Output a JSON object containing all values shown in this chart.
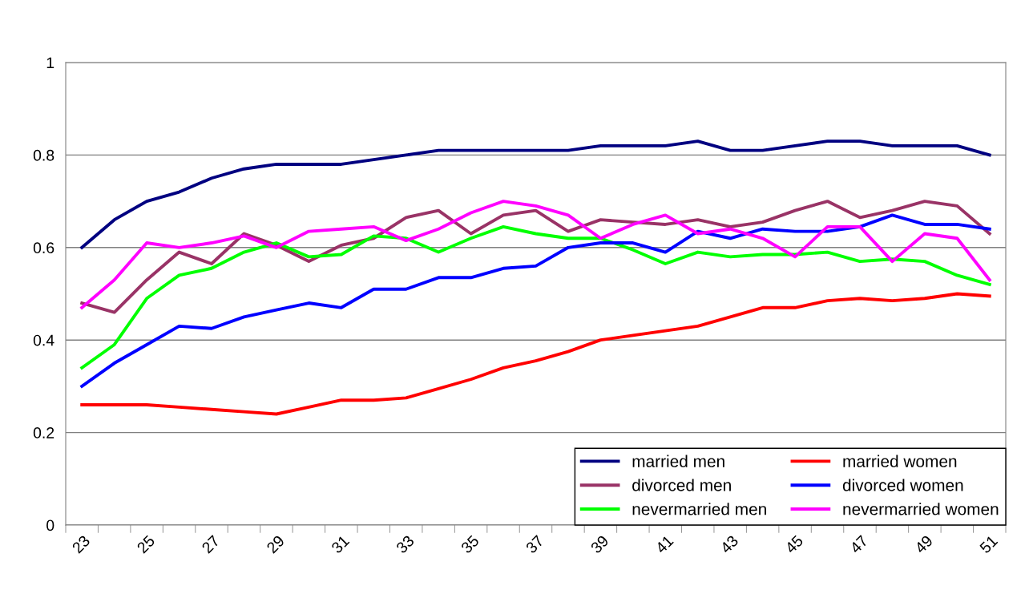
{
  "chart_data": {
    "type": "line",
    "categories": [
      "23",
      null,
      "25",
      null,
      "27",
      null,
      "29",
      null,
      "31",
      null,
      "33",
      null,
      "35",
      null,
      "37",
      null,
      "39",
      null,
      "41",
      null,
      "43",
      null,
      "45",
      null,
      "47",
      null,
      "49",
      null,
      "51"
    ],
    "series": [
      {
        "name": "married men",
        "color": "#000080",
        "values": [
          0.6,
          0.66,
          0.7,
          0.72,
          0.75,
          0.77,
          0.78,
          0.78,
          0.78,
          0.79,
          0.8,
          0.81,
          0.81,
          0.81,
          0.81,
          0.81,
          0.82,
          0.82,
          0.82,
          0.83,
          0.81,
          0.81,
          0.82,
          0.83,
          0.83,
          0.82,
          0.82,
          0.82,
          0.8
        ]
      },
      {
        "name": "divorced men",
        "color": "#993366",
        "values": [
          0.48,
          0.46,
          0.53,
          0.59,
          0.565,
          0.63,
          0.605,
          0.57,
          0.605,
          0.62,
          0.665,
          0.68,
          0.63,
          0.67,
          0.68,
          0.635,
          0.66,
          0.655,
          0.65,
          0.66,
          0.645,
          0.655,
          0.68,
          0.7,
          0.665,
          0.68,
          0.7,
          0.69,
          0.63
        ]
      },
      {
        "name": "nevermarried men",
        "color": "#00ff00",
        "values": [
          0.34,
          0.39,
          0.49,
          0.54,
          0.555,
          0.59,
          0.61,
          0.58,
          0.585,
          0.625,
          0.62,
          0.59,
          0.62,
          0.645,
          0.63,
          0.62,
          0.62,
          0.595,
          0.565,
          0.59,
          0.58,
          0.585,
          0.585,
          0.59,
          0.57,
          0.575,
          0.57,
          0.54,
          0.52
        ]
      },
      {
        "name": "married women",
        "color": "#ff0000",
        "values": [
          0.26,
          0.26,
          0.26,
          0.255,
          0.25,
          0.245,
          0.24,
          0.255,
          0.27,
          0.27,
          0.275,
          0.295,
          0.315,
          0.34,
          0.355,
          0.375,
          0.4,
          0.41,
          0.42,
          0.43,
          0.45,
          0.47,
          0.47,
          0.485,
          0.49,
          0.485,
          0.49,
          0.5,
          0.495
        ]
      },
      {
        "name": "divorced women",
        "color": "#0000ff",
        "values": [
          0.3,
          0.35,
          0.39,
          0.43,
          0.425,
          0.45,
          0.465,
          0.48,
          0.47,
          0.51,
          0.51,
          0.535,
          0.535,
          0.555,
          0.56,
          0.6,
          0.61,
          0.61,
          0.59,
          0.635,
          0.62,
          0.64,
          0.635,
          0.635,
          0.645,
          0.67,
          0.65,
          0.65,
          0.64
        ]
      },
      {
        "name": "nevermarried women",
        "color": "#ff00ff",
        "values": [
          0.47,
          0.53,
          0.61,
          0.6,
          0.61,
          0.625,
          0.6,
          0.635,
          0.64,
          0.645,
          0.615,
          0.64,
          0.675,
          0.7,
          0.69,
          0.67,
          0.62,
          0.65,
          0.67,
          0.63,
          0.64,
          0.62,
          0.58,
          0.645,
          0.645,
          0.57,
          0.63,
          0.62,
          0.53
        ]
      }
    ],
    "ylim": [
      0,
      1
    ],
    "yticks": [
      0,
      0.2,
      0.4,
      0.6,
      0.8,
      1
    ],
    "grid": "y",
    "legend": "bottom right",
    "marker": "none",
    "line_style": "solid"
  }
}
